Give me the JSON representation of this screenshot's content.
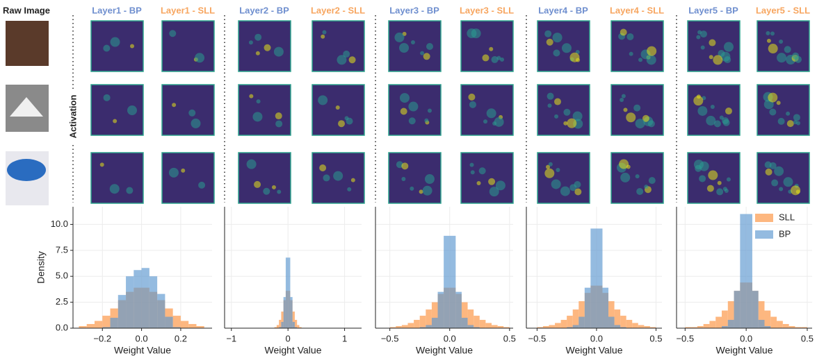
{
  "figure": {
    "row_header": "Raw Image",
    "column_titles": [
      "Layer1 - BP",
      "Layer1 - SLL",
      "Layer2 - BP",
      "Layer2 - SLL",
      "Layer3 - BP",
      "Layer3 - SLL",
      "Layer4 - BP",
      "Layer4 - SLL",
      "Layer5 - BP",
      "Layer5 - SLL"
    ],
    "side_label": "Activation"
  },
  "chart_data": [
    {
      "type": "histogram",
      "xlabel": "Weight Value",
      "ylabel": "Density",
      "bins": [
        -0.32,
        -0.28,
        -0.24,
        -0.2,
        -0.16,
        -0.12,
        -0.08,
        -0.04,
        0,
        0.04,
        0.08,
        0.12,
        0.16,
        0.2,
        0.24,
        0.28,
        0.32
      ],
      "series": [
        {
          "color": "#fdaa6a",
          "values": [
            0.2,
            0.4,
            0.7,
            1.2,
            1.9,
            2.7,
            3.5,
            3.9,
            3.9,
            3.5,
            2.7,
            1.9,
            1.2,
            0.7,
            0.4,
            0.2
          ]
        },
        {
          "color": "#5a97cf",
          "values": [
            0,
            0,
            0,
            0.1,
            1.0,
            3.2,
            5.0,
            5.6,
            5.8,
            5.0,
            3.3,
            1.1,
            0.1,
            0,
            0,
            0
          ]
        }
      ],
      "xlim": [
        -0.35,
        0.36
      ],
      "ylim": [
        0,
        11.7
      ],
      "xticks": [
        {
          "value": -0.2,
          "label": "−0.2"
        },
        {
          "value": 0,
          "label": "0.0"
        },
        0.2
      ],
      "yticks": [
        {
          "value": 0,
          "label": "0.0"
        },
        2.5,
        {
          "value": 5,
          "label": "5.0"
        },
        7.5,
        {
          "value": 10,
          "label": "10.0"
        }
      ],
      "grid": true
    },
    {
      "type": "histogram",
      "xlabel": "Weight Value",
      "bins": [
        -0.24,
        -0.2,
        -0.16,
        -0.12,
        -0.08,
        -0.04,
        0,
        0.04,
        0.08,
        0.12,
        0.16,
        0.2,
        0.24
      ],
      "series": [
        {
          "color": "#fdaa6a",
          "values": [
            0.1,
            0.3,
            0.8,
            1.6,
            2.7,
            3.6,
            3.6,
            2.7,
            1.6,
            0.8,
            0.3,
            0.1
          ]
        },
        {
          "color": "#5a97cf",
          "values": [
            0,
            0,
            0.1,
            0.6,
            3.0,
            6.8,
            6.8,
            3.0,
            0.6,
            0.1,
            0,
            0
          ]
        }
      ],
      "xlim": [
        -1.12,
        1.3
      ],
      "ylim": [
        0,
        11.7
      ],
      "xticks": [
        {
          "value": -1,
          "label": "−1"
        },
        0,
        1
      ],
      "grid": true
    },
    {
      "type": "histogram",
      "xlabel": "Weight Value",
      "bins": [
        -0.5,
        -0.45,
        -0.4,
        -0.35,
        -0.3,
        -0.25,
        -0.2,
        -0.15,
        -0.1,
        -0.05,
        0,
        0.05,
        0.1,
        0.15,
        0.2,
        0.25,
        0.3,
        0.35,
        0.4,
        0.45,
        0.5
      ],
      "series": [
        {
          "color": "#fdaa6a",
          "values": [
            0.1,
            0.2,
            0.3,
            0.5,
            0.8,
            1.2,
            1.8,
            2.5,
            3.3,
            3.9,
            3.9,
            3.3,
            2.5,
            1.8,
            1.2,
            0.8,
            0.5,
            0.3,
            0.2,
            0.1
          ]
        },
        {
          "color": "#5a97cf",
          "values": [
            0,
            0,
            0,
            0,
            0,
            0.1,
            0.3,
            1.0,
            3.5,
            8.9,
            8.9,
            3.5,
            1.0,
            0.3,
            0.1,
            0,
            0,
            0,
            0,
            0
          ]
        }
      ],
      "xlim": [
        -0.62,
        0.53
      ],
      "ylim": [
        0,
        11.7
      ],
      "xticks": [
        {
          "value": -0.5,
          "label": "−0.5"
        },
        {
          "value": 0,
          "label": "0.0"
        },
        0.5
      ],
      "grid": true
    },
    {
      "type": "histogram",
      "xlabel": "Weight Value",
      "bins": [
        -0.5,
        -0.45,
        -0.4,
        -0.35,
        -0.3,
        -0.25,
        -0.2,
        -0.15,
        -0.1,
        -0.05,
        0,
        0.05,
        0.1,
        0.15,
        0.2,
        0.25,
        0.3,
        0.35,
        0.4,
        0.45,
        0.5
      ],
      "series": [
        {
          "color": "#fdaa6a",
          "values": [
            0.1,
            0.2,
            0.3,
            0.5,
            0.8,
            1.2,
            1.8,
            2.6,
            3.4,
            4.1,
            4.1,
            3.4,
            2.6,
            1.8,
            1.2,
            0.8,
            0.5,
            0.3,
            0.2,
            0.1
          ]
        },
        {
          "color": "#5a97cf",
          "values": [
            0,
            0,
            0,
            0,
            0,
            0.1,
            0.3,
            1.1,
            3.9,
            9.6,
            9.6,
            3.9,
            1.1,
            0.3,
            0.1,
            0,
            0,
            0,
            0,
            0
          ]
        }
      ],
      "xlim": [
        -0.59,
        0.55
      ],
      "ylim": [
        0,
        11.7
      ],
      "xticks": [
        {
          "value": -0.5,
          "label": "−0.5"
        },
        {
          "value": 0,
          "label": "0.0"
        },
        0.5
      ],
      "grid": true
    },
    {
      "type": "histogram",
      "xlabel": "Weight Value",
      "bins": [
        -0.5,
        -0.45,
        -0.4,
        -0.35,
        -0.3,
        -0.25,
        -0.2,
        -0.15,
        -0.1,
        -0.05,
        0,
        0.05,
        0.1,
        0.15,
        0.2,
        0.25,
        0.3,
        0.35,
        0.4,
        0.45,
        0.5
      ],
      "series": [
        {
          "name": "SLL",
          "color": "#fdaa6a",
          "values": [
            0.1,
            0.1,
            0.2,
            0.4,
            0.7,
            1.1,
            1.7,
            2.6,
            3.6,
            4.4,
            4.4,
            3.6,
            2.6,
            1.7,
            1.1,
            0.7,
            0.4,
            0.2,
            0.1,
            0.1
          ]
        },
        {
          "name": "BP",
          "color": "#5a97cf",
          "values": [
            0,
            0,
            0,
            0,
            0,
            0,
            0.2,
            0.8,
            3.6,
            11.0,
            11.0,
            3.6,
            0.8,
            0.2,
            0,
            0,
            0,
            0,
            0,
            0
          ]
        }
      ],
      "xlim": [
        -0.57,
        0.54
      ],
      "ylim": [
        0,
        11.7
      ],
      "xticks": [
        {
          "value": -0.5,
          "label": "−0.5"
        },
        {
          "value": 0,
          "label": "0.0"
        },
        0.5
      ],
      "grid": true,
      "legend": "upper right"
    }
  ]
}
